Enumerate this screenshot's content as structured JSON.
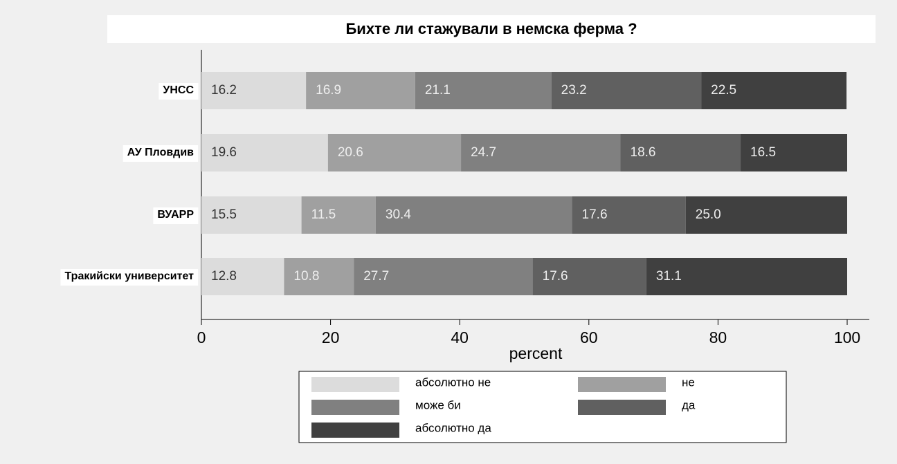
{
  "chart_data": {
    "type": "stacked_bar_horizontal",
    "title": "Бихте ли стажували в немска ферма ?",
    "categories": [
      "УНСС",
      "АУ Пловдив",
      "ВУАРР",
      "Тракийски университет"
    ],
    "series": [
      {
        "name": "абсолютно не",
        "color": "#dcdcdc",
        "values": [
          16.2,
          19.6,
          15.5,
          12.8
        ],
        "value_labels": [
          "16.2",
          "19.6",
          "15.5",
          "12.8"
        ]
      },
      {
        "name": "не",
        "color": "#a0a0a0",
        "values": [
          16.9,
          20.6,
          11.5,
          10.8
        ],
        "value_labels": [
          "16.9",
          "20.6",
          "11.5",
          "10.8"
        ]
      },
      {
        "name": "може би",
        "color": "#808080",
        "values": [
          21.1,
          24.7,
          30.4,
          27.7
        ],
        "value_labels": [
          "21.1",
          "24.7",
          "30.4",
          "27.7"
        ]
      },
      {
        "name": "да",
        "color": "#606060",
        "values": [
          23.2,
          18.6,
          17.6,
          17.6
        ],
        "value_labels": [
          "23.2",
          "18.6",
          "17.6",
          "17.6"
        ]
      },
      {
        "name": "абсолютно да",
        "color": "#404040",
        "values": [
          22.5,
          16.5,
          25.0,
          31.1
        ],
        "value_labels": [
          "22.5",
          "16.5",
          "25.0",
          "31.1"
        ]
      }
    ],
    "xlabel": "percent",
    "xlim": [
      0,
      100
    ],
    "xticks": [
      0,
      20,
      40,
      60,
      80,
      100
    ]
  }
}
